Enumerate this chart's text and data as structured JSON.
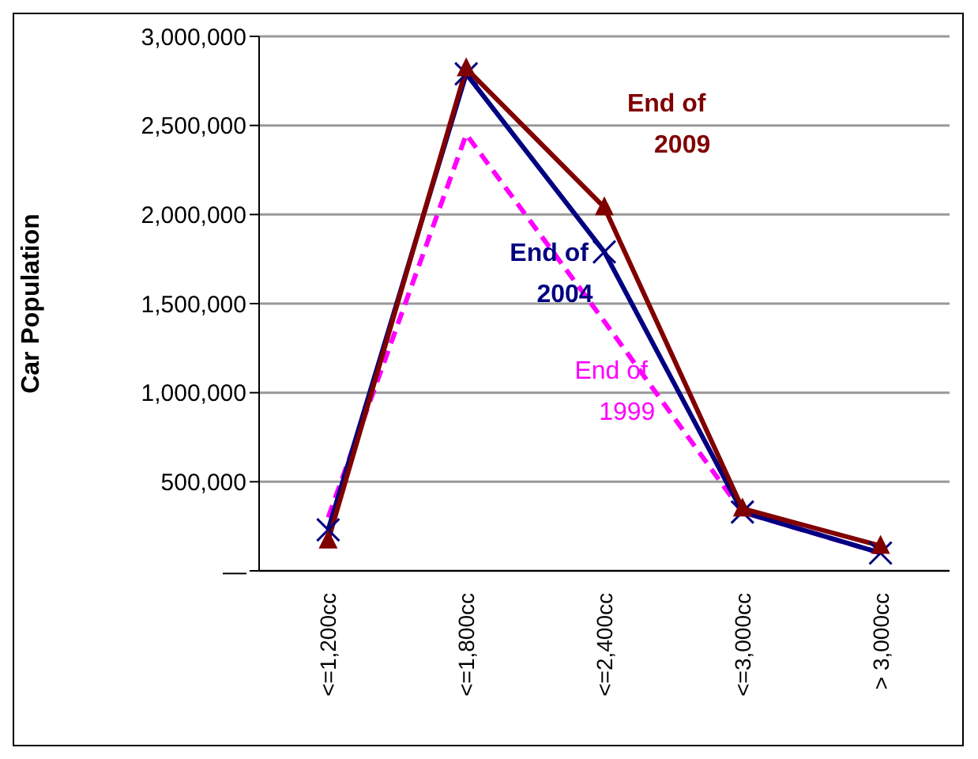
{
  "chart_data": {
    "type": "line",
    "ylabel": "Car Population",
    "categories": [
      "<=1,200cc",
      "<=1,800cc",
      "<=2,400cc",
      "<=3,000cc",
      "> 3,000cc"
    ],
    "ylim": [
      0,
      3000000
    ],
    "yticks": [
      {
        "value": 0,
        "label": "—"
      },
      {
        "value": 500000,
        "label": "500,000"
      },
      {
        "value": 1000000,
        "label": "1,000,000"
      },
      {
        "value": 1500000,
        "label": "1,500,000"
      },
      {
        "value": 2000000,
        "label": "2,000,000"
      },
      {
        "value": 2500000,
        "label": "2,500,000"
      },
      {
        "value": 3000000,
        "label": "3,000,000"
      }
    ],
    "grid": "y",
    "series": [
      {
        "name": "End of 1999",
        "color": "#ff00ff",
        "values": [
          300000,
          2450000,
          1400000,
          330000,
          100000
        ],
        "marker": "none",
        "line_style": "dashed"
      },
      {
        "name": "End of 2004",
        "color": "#000080",
        "values": [
          230000,
          2790000,
          1790000,
          330000,
          100000
        ],
        "marker": "cross",
        "line_style": "solid"
      },
      {
        "name": "End of 2009",
        "color": "#800000",
        "values": [
          170000,
          2820000,
          2040000,
          350000,
          140000
        ],
        "marker": "triangle",
        "line_style": "solid"
      }
    ]
  }
}
